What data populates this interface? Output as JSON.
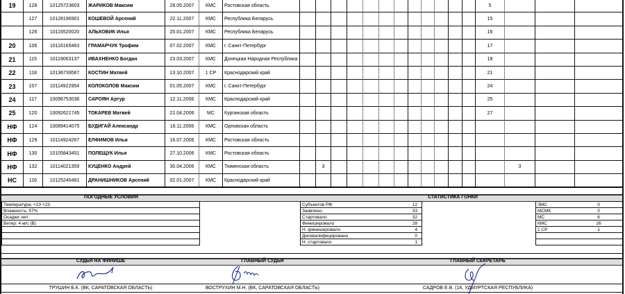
{
  "results": [
    {
      "place": "19",
      "bib": "128",
      "uci": "10125723603",
      "name": "ЖАРИКОВ Максим",
      "dob": "28.05.2007",
      "rank": "КМС",
      "region": "Ростовская область",
      "marks": {
        "12": "5"
      }
    },
    {
      "place": "",
      "bib": "127",
      "uci": "10128196901",
      "name": "КОШЕВОЙ Арсений",
      "dob": "22.11.2007",
      "rank": "КМС",
      "region": "Республика Беларусь",
      "marks": {
        "12": "15"
      }
    },
    {
      "place": "",
      "bib": "126",
      "uci": "10116520020",
      "name": "АЛЬХОВИК Илья",
      "dob": "20.01.2007",
      "rank": "КМС",
      "region": "Республика Беларусь",
      "marks": {
        "12": "16"
      }
    },
    {
      "place": "20",
      "bib": "106",
      "uci": "10116165463",
      "name": "ГРАМАРЧУК Трофим",
      "dob": "07.02.2007",
      "rank": "КМС",
      "region": "г. Санкт-Петербург",
      "marks": {
        "12": "17"
      }
    },
    {
      "place": "21",
      "bib": "115",
      "uci": "10119063137",
      "name": "ИВАХНЕНКО Богдан",
      "dob": "23.03.2007",
      "rank": "КМС",
      "region": "Донецкая Народная Республика",
      "marks": {
        "12": "18"
      }
    },
    {
      "place": "22",
      "bib": "118",
      "uci": "10136739567",
      "name": "КОСТИН Матвей",
      "dob": "13.10.2007",
      "rank": "1 СР",
      "region": "Краснодарский край",
      "marks": {
        "12": "21"
      }
    },
    {
      "place": "23",
      "bib": "107",
      "uci": "10114922954",
      "name": "КОЛОКОЛОВ Максим",
      "dob": "01.05.2007",
      "rank": "КМС",
      "region": "г. Санкт-Петербург",
      "marks": {
        "12": "24"
      }
    },
    {
      "place": "24",
      "bib": "117",
      "uci": "10096753036",
      "name": "САРОЯН Артур",
      "dob": "12.11.2006",
      "rank": "КМС",
      "region": "Краснодарский край",
      "marks": {
        "12": "25"
      }
    },
    {
      "place": "25",
      "bib": "120",
      "uci": "10092621745",
      "name": "ТОКАРЕВ Матвей",
      "dob": "21.04.2006",
      "rank": "МС",
      "region": "Курганская область",
      "marks": {
        "12": "27"
      }
    },
    {
      "place": "НФ",
      "bib": "124",
      "uci": "10089414075",
      "name": "БУДИГАЙ Александр",
      "dob": "16.11.2006",
      "rank": "КМС",
      "region": "Орловская область",
      "marks": {}
    },
    {
      "place": "НФ",
      "bib": "129",
      "uci": "10114924267",
      "name": "ЕЛФИМОВ Илья",
      "dob": "16.07.2006",
      "rank": "КМС",
      "region": "Ростовская область",
      "marks": {}
    },
    {
      "place": "НФ",
      "bib": "130",
      "uci": "10105843451",
      "name": "ПОЛЕЩУК Илья",
      "dob": "27.10.2006",
      "rank": "КМС",
      "region": "Ростовская область",
      "marks": {}
    },
    {
      "place": "НФ",
      "bib": "132",
      "uci": "10114021359",
      "name": "КУЦЕНКО Андрей",
      "dob": "30.04.2006",
      "rank": "КМС",
      "region": "Тюменская область",
      "marks": {
        "1": "3",
        "13": "3"
      }
    },
    {
      "place": "НС",
      "bib": "116",
      "uci": "10125246481",
      "name": "ДРАНИШНИКОВ Арсений",
      "dob": "02.01.2007",
      "rank": "КМС",
      "region": "Краснодарский край",
      "marks": {}
    }
  ],
  "weather": {
    "title": "ПОГОДНЫЕ УСЛОВИЯ",
    "rows": [
      "Температура: +23 +23",
      "Влажность: 57%",
      "Осадки: нет",
      "Ветер: 4 м/с (В)",
      "",
      "",
      ""
    ]
  },
  "stats": {
    "title": "СТАТИСТИКА ГОНКИ",
    "rows": [
      {
        "label": "Субъектов РФ:",
        "value": "12"
      },
      {
        "label": "Заявлено",
        "value": "33"
      },
      {
        "label": "Стартовало",
        "value": "32"
      },
      {
        "label": "Финишировало",
        "value": "28"
      },
      {
        "label": "Н. финишировало",
        "value": "4"
      },
      {
        "label": "Дисквалифицировано",
        "value": "0"
      },
      {
        "label": "Н. стартовало",
        "value": "1"
      }
    ],
    "ranks": [
      {
        "label": "ЗМС",
        "value": "0"
      },
      {
        "label": "МСМК",
        "value": "0"
      },
      {
        "label": "МС",
        "value": "6"
      },
      {
        "label": "КМС",
        "value": "26"
      },
      {
        "label": "1 СР",
        "value": "1"
      },
      {
        "label": "",
        "value": ""
      },
      {
        "label": "",
        "value": ""
      }
    ]
  },
  "officials": [
    {
      "role": "СУДЬЯ НА ФИНИШЕ",
      "name": "ТРУШИН Б.К. (ВК, САРАТОВСКАЯ ОБЛАСТЬ)"
    },
    {
      "role": "ГЛАВНЫЙ СУДЬЯ",
      "name": "ВОСТРУХИН М.Н. (ВК, САРАТОВСКАЯ ОБЛАСТЬ)"
    },
    {
      "role": "ГЛАВНЫЙ СЕКРЕТАРЬ",
      "name": "САДРОВ Е.В. (1К, УДМУРТСКАЯ РЕСПУБЛИКА)"
    }
  ],
  "colors": {
    "band": "#dddddd",
    "ink": "#1a2a9a"
  }
}
